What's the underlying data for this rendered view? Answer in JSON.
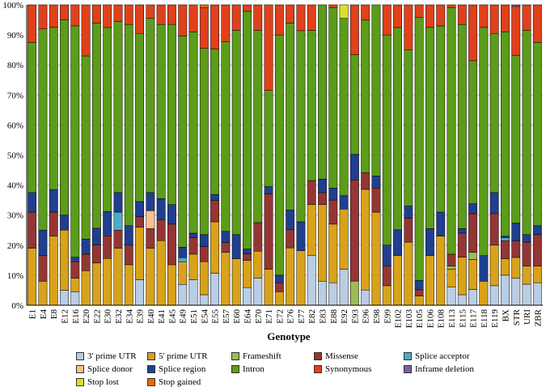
{
  "chart_data": {
    "type": "stacked-bar-100",
    "title": "",
    "xlabel": "Genotype",
    "ylabel": "",
    "ylim": [
      0,
      100
    ],
    "yticks": [
      "0%",
      "10%",
      "20%",
      "30%",
      "40%",
      "50%",
      "60%",
      "70%",
      "80%",
      "90%",
      "100%"
    ],
    "categories": [
      "E1",
      "E4",
      "E8",
      "E12",
      "E16",
      "E20",
      "E22",
      "E30",
      "E32",
      "E34",
      "E39",
      "E40",
      "E41",
      "E45",
      "E49",
      "E51",
      "E54",
      "E55",
      "E57",
      "E60",
      "E64",
      "E70",
      "E71",
      "E72",
      "E76",
      "E77",
      "E82",
      "E83",
      "E88",
      "E92",
      "E93",
      "E96",
      "E98",
      "E99",
      "E102",
      "E103",
      "E105",
      "E106",
      "E108",
      "E113",
      "E115",
      "E117",
      "E118",
      "E119",
      "BX",
      "STR",
      "URI",
      "ZBR"
    ],
    "series": [
      {
        "name": "3' prime UTR",
        "color": "#b9cde5",
        "values": [
          0,
          0,
          0,
          5,
          4.5,
          0,
          0,
          0,
          0,
          0,
          8.5,
          0,
          0,
          0,
          7,
          8.5,
          3.5,
          10.5,
          0,
          0,
          5.5,
          9,
          0,
          0,
          0,
          0,
          16.5,
          8,
          7.5,
          12,
          0,
          5,
          0,
          0,
          0,
          0,
          0,
          0,
          0,
          6,
          3.5,
          5.5,
          0,
          6.5,
          10,
          9,
          7,
          7.5
        ]
      },
      {
        "name": "5' prime UTR",
        "color": "#d9a21b",
        "values": [
          19,
          8,
          23,
          20,
          4.5,
          11.5,
          14,
          15.5,
          19,
          13.5,
          17.5,
          19,
          21.5,
          13.5,
          7.5,
          8.5,
          11,
          17,
          16.5,
          15.5,
          8.5,
          9,
          12,
          4.5,
          19,
          18,
          17,
          25.5,
          19.5,
          20,
          0,
          33,
          31,
          6.5,
          16.5,
          21,
          3,
          16.5,
          23,
          6,
          12.5,
          10.5,
          8,
          13.5,
          5.5,
          7,
          6,
          5.5
        ]
      },
      {
        "name": "Frameshift",
        "color": "#9bbb59",
        "values": [
          0,
          0,
          0,
          0,
          0,
          0,
          0,
          0,
          0,
          0,
          0,
          0,
          0,
          0,
          0,
          0,
          0,
          0,
          0,
          0,
          0,
          0,
          0,
          0,
          0,
          0,
          0,
          0,
          0,
          0,
          8,
          0,
          0,
          0,
          0,
          0,
          0,
          0,
          0,
          1,
          0,
          2.5,
          0,
          0,
          0,
          0,
          0,
          0
        ]
      },
      {
        "name": "Missense",
        "color": "#943634",
        "values": [
          12,
          8.5,
          8,
          0,
          5.5,
          5.5,
          6,
          7.5,
          6,
          6.5,
          3.5,
          6.5,
          7,
          13.5,
          0,
          5.5,
          5,
          7,
          3,
          0,
          2,
          9.5,
          25,
          3,
          6,
          0,
          8,
          4,
          8,
          0,
          33.5,
          5.5,
          8,
          6.5,
          0,
          8,
          2,
          0,
          0,
          4,
          8,
          13.5,
          0,
          10.5,
          6,
          5.5,
          8,
          10.5
        ]
      },
      {
        "name": "Splice acceptor",
        "color": "#4bacc6",
        "values": [
          0,
          0,
          0,
          0,
          0,
          0,
          0,
          0,
          6,
          0,
          0,
          0,
          0,
          0,
          1.5,
          0,
          0,
          0,
          0,
          0,
          0,
          0,
          0,
          0,
          0,
          0,
          0,
          0,
          0,
          0,
          0,
          0,
          0,
          0,
          0,
          0,
          0,
          0,
          0,
          0,
          0,
          0,
          0,
          0,
          1,
          0,
          0,
          0
        ]
      },
      {
        "name": "Splice donor",
        "color": "#fac090",
        "values": [
          0,
          0,
          0,
          0,
          0,
          0,
          0,
          0,
          0,
          0,
          0,
          6,
          0,
          0,
          0,
          0,
          0,
          0,
          0,
          0,
          0,
          0,
          0,
          0,
          0,
          0,
          0,
          0,
          0,
          0,
          0,
          0,
          0,
          0,
          0,
          0,
          0,
          0,
          0,
          0,
          0,
          0,
          0,
          0,
          0,
          0,
          0,
          0
        ]
      },
      {
        "name": "Splice region",
        "color": "#1f3f8f",
        "values": [
          6.5,
          8.5,
          7.5,
          5,
          1.5,
          5,
          5.5,
          8,
          6.5,
          6.5,
          5,
          6,
          7,
          6.5,
          3.5,
          1.5,
          4,
          2,
          3.5,
          8,
          1.5,
          0,
          2.5,
          2.5,
          6.5,
          9.5,
          0,
          4.5,
          4,
          4.5,
          8.5,
          0,
          4,
          7,
          8.5,
          4,
          3,
          9,
          8,
          0,
          1.5,
          3.5,
          8.5,
          7,
          0.5,
          6,
          2.5,
          3
        ]
      },
      {
        "name": "Intron",
        "color": "#5b9c1a",
        "values": [
          50,
          67,
          54,
          65,
          77,
          61,
          68,
          61,
          57,
          67,
          56,
          58,
          58,
          60,
          71,
          67,
          62,
          48,
          59,
          68,
          74,
          64,
          32,
          80,
          62,
          63,
          50,
          58,
          60,
          59,
          33,
          50,
          57,
          70,
          67,
          52,
          85,
          67,
          62,
          82,
          68,
          50,
          76,
          53,
          68,
          56,
          68,
          61
        ]
      },
      {
        "name": "Synonymous",
        "color": "#e0411b",
        "values": [
          12.5,
          8,
          7.5,
          5,
          7,
          17,
          6,
          7.5,
          5.5,
          6.5,
          9.5,
          4.5,
          6.5,
          6.5,
          10.5,
          9,
          13.5,
          14.5,
          11.5,
          8.5,
          2,
          8.5,
          28.5,
          10,
          6,
          8.5,
          8.5,
          0,
          1,
          0,
          16.5,
          5,
          0,
          10,
          7.5,
          15,
          4,
          7.5,
          7,
          1,
          6.5,
          19.5,
          7.5,
          9.5,
          9,
          16.5,
          8.5,
          12.5
        ]
      },
      {
        "name": "Inframe deletion",
        "color": "#7b5ea7",
        "values": [
          0,
          0,
          0,
          0,
          0,
          0,
          0,
          0,
          0,
          0,
          0,
          0,
          0,
          0,
          0,
          0,
          0,
          0,
          0,
          0,
          0,
          0,
          0,
          0,
          0,
          0,
          0,
          0,
          0,
          0,
          0,
          0,
          0,
          0,
          0,
          0,
          0,
          0,
          0,
          0,
          0,
          0,
          0,
          0,
          0,
          0.5,
          0,
          0
        ]
      },
      {
        "name": "Stop lost",
        "color": "#dede2a",
        "values": [
          0,
          0,
          0,
          0,
          0,
          0,
          0,
          0,
          0,
          0,
          0,
          0,
          0,
          0,
          0,
          0,
          0,
          0,
          0,
          0,
          0,
          0,
          0,
          0,
          0,
          0,
          0,
          0,
          0,
          4.5,
          0,
          0,
          0,
          0,
          0,
          0,
          0,
          0,
          0,
          0,
          0,
          0,
          0,
          0,
          0,
          0,
          0,
          0
        ]
      },
      {
        "name": "Stop gained",
        "color": "#e36c09",
        "values": [
          0,
          0,
          0,
          0,
          0,
          0,
          0,
          0,
          0,
          0,
          0,
          0,
          0,
          0,
          0,
          0,
          1,
          0,
          0,
          0,
          0,
          0,
          0,
          0,
          0,
          0,
          0,
          0,
          0,
          0,
          0,
          0,
          0,
          0,
          0,
          0,
          0,
          0,
          0,
          0,
          0,
          0,
          0,
          0,
          0,
          0,
          0,
          0
        ]
      }
    ]
  }
}
